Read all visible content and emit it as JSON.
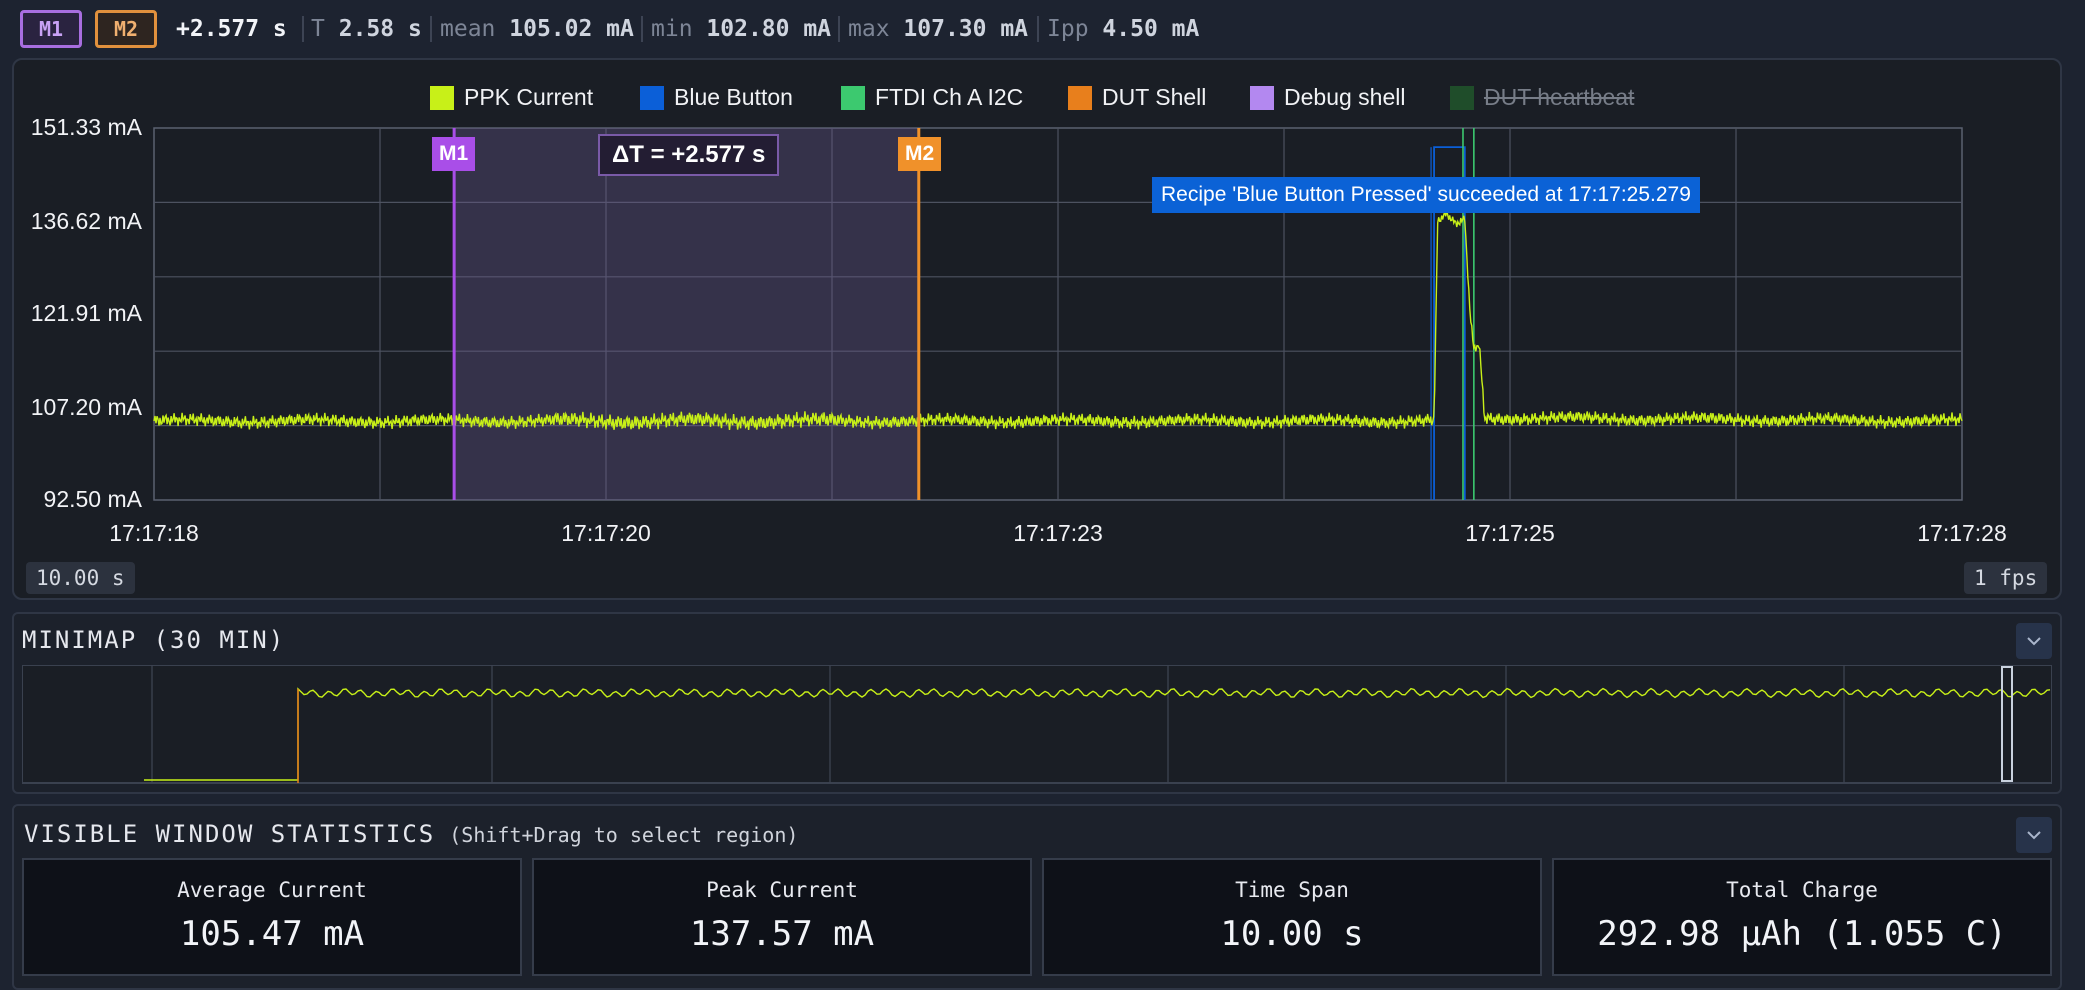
{
  "markers": {
    "m1_label": "M1",
    "m2_label": "M2",
    "delta": "+2.577 s",
    "stats": [
      {
        "label": "T",
        "value": "2.58 s"
      },
      {
        "label": "mean",
        "value": "105.02 mA"
      },
      {
        "label": "min",
        "value": "102.80 mA"
      },
      {
        "label": "max",
        "value": "107.30 mA"
      },
      {
        "label": "Ipp",
        "value": "4.50 mA"
      }
    ]
  },
  "colors": {
    "ppk": "#c8f018",
    "blue_button": "#0b5fd8",
    "ftdi": "#3cc96f",
    "dut_shell": "#e87f1c",
    "debug_shell": "#b388f0",
    "dut_heartbeat": "#1f4d2a",
    "m1": "#a94ee8",
    "m2": "#f0912a"
  },
  "chart": {
    "legend": [
      {
        "label": "PPK Current",
        "color": "#c8f018",
        "hidden": false
      },
      {
        "label": "Blue Button",
        "color": "#0b5fd8",
        "hidden": false
      },
      {
        "label": "FTDI Ch A I2C",
        "color": "#3cc96f",
        "hidden": false
      },
      {
        "label": "DUT Shell",
        "color": "#e87f1c",
        "hidden": false
      },
      {
        "label": "Debug shell",
        "color": "#b388f0",
        "hidden": false
      },
      {
        "label": "DUT heartbeat",
        "color": "#1f4d2a",
        "hidden": true
      }
    ],
    "y_tick_labels": [
      "151.33 mA",
      "136.62 mA",
      "121.91 mA",
      "107.20 mA",
      "92.50 mA"
    ],
    "x_tick_labels": [
      "17:17:18",
      "17:17:20",
      "17:17:23",
      "17:17:25",
      "17:17:28"
    ],
    "m1_flag": "M1",
    "m2_flag": "M2",
    "delta_text": "ΔT = +2.577 s",
    "recipe_annotation": "Recipe 'Blue Button Pressed' succeeded at 17:17:25.279",
    "window_span": "10.00 s",
    "fps": "1 fps"
  },
  "chart_data": {
    "type": "line",
    "title": "",
    "xlabel": "",
    "ylabel": "",
    "ylim": [
      92.5,
      151.33
    ],
    "x_ticks": [
      "17:17:18",
      "17:17:20",
      "17:17:23",
      "17:17:25",
      "17:17:28"
    ],
    "grid": true,
    "legend_position": "top",
    "x_range_seconds": [
      0,
      10
    ],
    "series": [
      {
        "name": "PPK Current",
        "baseline_mA": 105.0,
        "noise_pp_mA": 4.5,
        "points": [
          [
            0.0,
            105.0
          ],
          [
            7.08,
            105.0
          ],
          [
            7.1,
            136.5
          ],
          [
            7.15,
            137.6
          ],
          [
            7.2,
            136.0
          ],
          [
            7.25,
            136.8
          ],
          [
            7.28,
            121.5
          ],
          [
            7.3,
            116.5
          ],
          [
            7.33,
            117.0
          ],
          [
            7.36,
            105.5
          ],
          [
            10.0,
            105.0
          ]
        ]
      }
    ],
    "events": [
      {
        "name": "Blue Button",
        "x_start": 7.08,
        "x_end": 7.25
      },
      {
        "name": "FTDI Ch A I2C",
        "x": 7.24
      },
      {
        "name": "FTDI Ch A I2C",
        "x": 7.3
      }
    ],
    "markers": [
      {
        "label": "M1",
        "x": 1.66
      },
      {
        "label": "M2",
        "x": 4.23
      }
    ]
  },
  "minimap": {
    "title": "MINIMAP (30 MIN)"
  },
  "stats": {
    "title": "VISIBLE WINDOW STATISTICS",
    "hint": "(Shift+Drag to select region)",
    "cards": [
      {
        "title": "Average Current",
        "value": "105.47 mA"
      },
      {
        "title": "Peak Current",
        "value": "137.57 mA"
      },
      {
        "title": "Time Span",
        "value": "10.00 s"
      },
      {
        "title": "Total Charge",
        "value": "292.98 µAh (1.055 C)"
      }
    ]
  }
}
